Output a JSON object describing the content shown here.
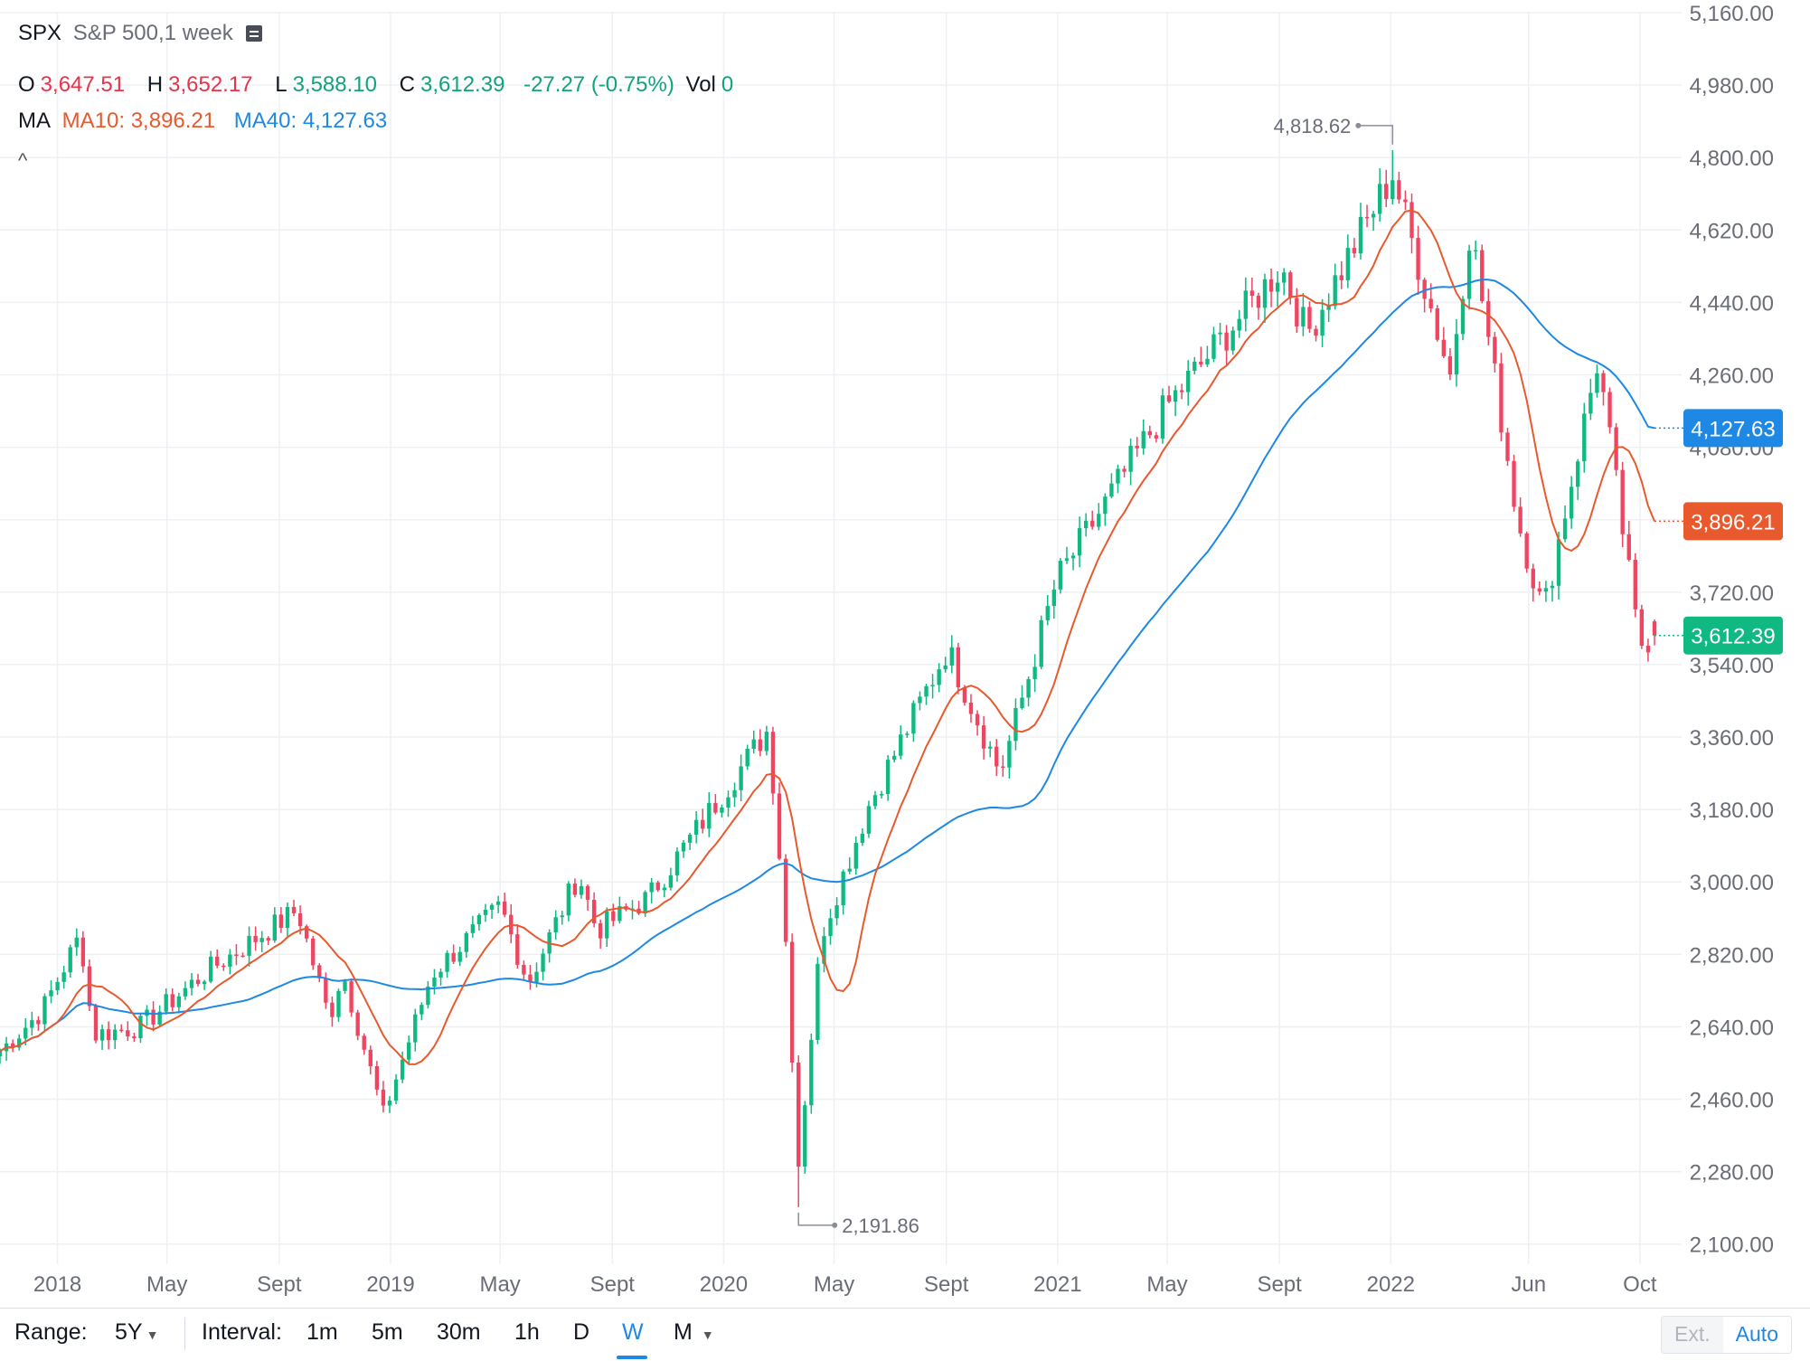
{
  "header": {
    "symbol": "SPX",
    "description": "S&P 500,1 week",
    "ohlc": {
      "o_label": "O",
      "o_value": "3,647.51",
      "h_label": "H",
      "h_value": "3,652.17",
      "l_label": "L",
      "l_value": "3,588.10",
      "c_label": "C",
      "c_value": "3,612.39",
      "change": "-27.27 (-0.75%)",
      "vol_label": "Vol",
      "vol_value": "0"
    },
    "ma_label": "MA",
    "ma10_text": "MA10: 3,896.21",
    "ma40_text": "MA40: 4,127.63",
    "collapse_glyph": "^"
  },
  "bottom_bar": {
    "range_label": "Range:",
    "range_value": "5Y",
    "interval_label": "Interval:",
    "intervals": [
      "1m",
      "5m",
      "30m",
      "1h",
      "D",
      "W",
      "M"
    ],
    "active_interval": "W",
    "ext_label": "Ext.",
    "auto_label": "Auto"
  },
  "colors": {
    "up": "#10b981",
    "down": "#ef4561",
    "ma10": "#e8592d",
    "ma40": "#1e88e5",
    "grid": "#eef0f3",
    "axis_text": "#6a6d78"
  },
  "chart_data": {
    "type": "candlestick",
    "symbol": "SPX",
    "interval": "1 week",
    "ylim": [
      2050,
      5160
    ],
    "y_ticks": [
      2100,
      2280,
      2460,
      2640,
      2820,
      3000,
      3180,
      3360,
      3540,
      3720,
      3900,
      4080,
      4260,
      4440,
      4620,
      4800,
      4980,
      5160
    ],
    "y_tick_labels": [
      "2,100.00",
      "2,280.00",
      "2,460.00",
      "2,640.00",
      "2,820.00",
      "3,000.00",
      "3,180.00",
      "3,360.00",
      "3,540.00",
      "3,720.00",
      "3,900.00",
      "4,080.00",
      "4,260.00",
      "4,440.00",
      "4,620.00",
      "4,800.00",
      "4,980.00",
      "5,160.00"
    ],
    "x_start": "2017-10-30",
    "x_end": "2022-10-17",
    "x_ticks": [
      {
        "label": "2018",
        "date": "2018-01-01"
      },
      {
        "label": "May",
        "date": "2018-05-01"
      },
      {
        "label": "Sept",
        "date": "2018-09-01"
      },
      {
        "label": "2019",
        "date": "2019-01-01"
      },
      {
        "label": "May",
        "date": "2019-05-01"
      },
      {
        "label": "Sept",
        "date": "2019-09-01"
      },
      {
        "label": "2020",
        "date": "2020-01-01"
      },
      {
        "label": "May",
        "date": "2020-05-01"
      },
      {
        "label": "Sept",
        "date": "2020-09-01"
      },
      {
        "label": "2021",
        "date": "2021-01-01"
      },
      {
        "label": "May",
        "date": "2021-05-01"
      },
      {
        "label": "Sept",
        "date": "2021-09-01"
      },
      {
        "label": "2022",
        "date": "2022-01-01"
      },
      {
        "label": "Jun",
        "date": "2022-06-01"
      },
      {
        "label": "Oct",
        "date": "2022-10-01"
      }
    ],
    "close_anchors": [
      {
        "date": "2017-10-30",
        "close": 2580
      },
      {
        "date": "2017-12-15",
        "close": 2680
      },
      {
        "date": "2018-01-26",
        "close": 2870
      },
      {
        "date": "2018-02-09",
        "close": 2620
      },
      {
        "date": "2018-04-01",
        "close": 2640
      },
      {
        "date": "2018-06-15",
        "close": 2780
      },
      {
        "date": "2018-09-21",
        "close": 2930
      },
      {
        "date": "2018-10-26",
        "close": 2660
      },
      {
        "date": "2018-11-09",
        "close": 2780
      },
      {
        "date": "2018-12-24",
        "close": 2420
      },
      {
        "date": "2019-02-15",
        "close": 2770
      },
      {
        "date": "2019-05-01",
        "close": 2940
      },
      {
        "date": "2019-06-01",
        "close": 2750
      },
      {
        "date": "2019-07-26",
        "close": 3020
      },
      {
        "date": "2019-08-15",
        "close": 2880
      },
      {
        "date": "2019-10-10",
        "close": 2960
      },
      {
        "date": "2020-02-19",
        "close": 3380
      },
      {
        "date": "2020-03-06",
        "close": 2970
      },
      {
        "date": "2020-03-23",
        "close": 2300
      },
      {
        "date": "2020-04-17",
        "close": 2870
      },
      {
        "date": "2020-06-08",
        "close": 3190
      },
      {
        "date": "2020-09-02",
        "close": 3580
      },
      {
        "date": "2020-10-30",
        "close": 3270
      },
      {
        "date": "2020-12-31",
        "close": 3750
      },
      {
        "date": "2021-04-30",
        "close": 4180
      },
      {
        "date": "2021-09-03",
        "close": 4530
      },
      {
        "date": "2021-10-01",
        "close": 4360
      },
      {
        "date": "2022-01-03",
        "close": 4760
      },
      {
        "date": "2022-03-07",
        "close": 4260
      },
      {
        "date": "2022-03-29",
        "close": 4630
      },
      {
        "date": "2022-05-20",
        "close": 3900
      },
      {
        "date": "2022-06-17",
        "close": 3670
      },
      {
        "date": "2022-08-16",
        "close": 4300
      },
      {
        "date": "2022-09-30",
        "close": 3590
      },
      {
        "date": "2022-10-17",
        "close": 3612.39
      }
    ],
    "last_bar": {
      "open": 3647.51,
      "high": 3652.17,
      "low": 3588.1,
      "close": 3612.39,
      "change": -27.27,
      "change_pct": -0.75
    },
    "moving_averages": [
      {
        "name": "MA10",
        "period": 10,
        "last": 3896.21
      },
      {
        "name": "MA40",
        "period": 40,
        "last": 4127.63
      }
    ],
    "annotations": [
      {
        "label": "4,818.62",
        "date": "2022-01-03",
        "value": 4818.62,
        "kind": "high"
      },
      {
        "label": "2,191.86",
        "date": "2020-03-23",
        "value": 2191.86,
        "kind": "low"
      }
    ],
    "price_badges": [
      {
        "label": "4,127.63",
        "value": 4127.63,
        "color": "#1e88e5"
      },
      {
        "label": "3,896.21",
        "value": 3896.21,
        "color": "#e8592d"
      },
      {
        "label": "3,612.39",
        "value": 3612.39,
        "color": "#10b981"
      }
    ],
    "grid": true
  }
}
